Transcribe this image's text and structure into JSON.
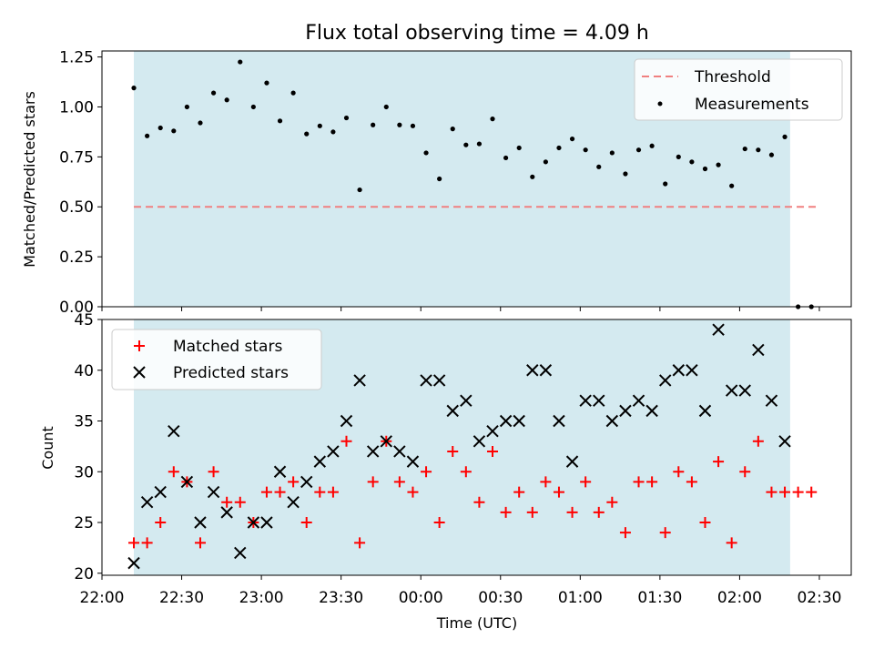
{
  "title": "Flux total observing time = 4.09 h",
  "colors": {
    "observing_span": "#d4eaf0",
    "threshold": "#f08080",
    "measurements": "#000000",
    "matched": "#ff0000",
    "predicted": "#000000"
  },
  "chart_data": [
    {
      "type": "scatter",
      "ylabel": "Matched/Predicted stars",
      "ylim": [
        0,
        1.28
      ],
      "xlim_minutes_after_22_00": [
        0,
        282
      ],
      "yticks": [
        "0.00",
        "0.25",
        "0.50",
        "0.75",
        "1.00",
        "1.25"
      ],
      "yticks_values": [
        0,
        0.25,
        0.5,
        0.75,
        1.0,
        1.25
      ],
      "observing_span_minutes": [
        12,
        259
      ],
      "legend": {
        "position": "top-right",
        "entries": [
          "Threshold",
          "Measurements"
        ]
      },
      "threshold": {
        "name": "Threshold",
        "value": 0.5,
        "x_range_minutes": [
          12,
          269
        ]
      },
      "series": [
        {
          "name": "Measurements",
          "x_minutes": [
            12,
            17,
            22,
            27,
            32,
            37,
            42,
            47,
            52,
            57,
            62,
            67,
            72,
            77,
            82,
            87,
            92,
            97,
            102,
            107,
            112,
            117,
            122,
            127,
            132,
            137,
            142,
            147,
            152,
            157,
            162,
            167,
            172,
            177,
            182,
            187,
            192,
            197,
            202,
            207,
            212,
            217,
            222,
            227,
            232,
            237,
            242,
            247,
            252,
            257,
            262,
            267
          ],
          "values": [
            1.095,
            0.855,
            0.895,
            0.88,
            1.0,
            0.92,
            1.07,
            1.035,
            1.225,
            1.0,
            1.12,
            0.93,
            1.07,
            0.865,
            0.905,
            0.875,
            0.945,
            0.585,
            0.91,
            1.0,
            0.91,
            0.905,
            0.77,
            0.64,
            0.89,
            0.81,
            0.815,
            0.94,
            0.745,
            0.795,
            0.65,
            0.725,
            0.795,
            0.84,
            0.785,
            0.7,
            0.77,
            0.665,
            0.785,
            0.805,
            0.615,
            0.75,
            0.725,
            0.69,
            0.71,
            0.605,
            0.79,
            0.785,
            0.76,
            0.85,
            0.0,
            0.0
          ]
        }
      ]
    },
    {
      "type": "scatter",
      "xlabel": "Time (UTC)",
      "ylabel": "Count",
      "ylim": [
        19.8,
        45
      ],
      "xlim_minutes_after_22_00": [
        0,
        282
      ],
      "xticks": [
        "22:00",
        "22:30",
        "23:00",
        "23:30",
        "00:00",
        "00:30",
        "01:00",
        "01:30",
        "02:00",
        "02:30"
      ],
      "xticks_minutes": [
        0,
        30,
        60,
        90,
        120,
        150,
        180,
        210,
        240,
        270
      ],
      "yticks": [
        "20",
        "25",
        "30",
        "35",
        "40",
        "45"
      ],
      "yticks_values": [
        20,
        25,
        30,
        35,
        40,
        45
      ],
      "observing_span_minutes": [
        12,
        259
      ],
      "legend": {
        "position": "top-left",
        "entries": [
          "Matched stars",
          "Predicted stars"
        ]
      },
      "series": [
        {
          "name": "Matched stars",
          "marker": "plus",
          "x_minutes": [
            12,
            17,
            22,
            27,
            32,
            37,
            42,
            47,
            52,
            57,
            62,
            67,
            72,
            77,
            82,
            87,
            92,
            97,
            102,
            107,
            112,
            117,
            122,
            127,
            132,
            137,
            142,
            147,
            152,
            157,
            162,
            167,
            172,
            177,
            182,
            187,
            192,
            197,
            202,
            207,
            212,
            217,
            222,
            227,
            232,
            237,
            242,
            247,
            252,
            257,
            262,
            267
          ],
          "values": [
            23,
            23,
            25,
            30,
            29,
            23,
            30,
            27,
            27,
            25,
            28,
            28,
            29,
            25,
            28,
            28,
            33,
            23,
            29,
            33,
            29,
            28,
            30,
            25,
            32,
            30,
            27,
            32,
            26,
            28,
            26,
            29,
            28,
            26,
            29,
            26,
            27,
            24,
            29,
            29,
            24,
            30,
            29,
            25,
            31,
            23,
            30,
            33,
            28,
            28,
            28,
            28
          ]
        },
        {
          "name": "Predicted stars",
          "marker": "x",
          "x_minutes": [
            12,
            17,
            22,
            27,
            32,
            37,
            42,
            47,
            52,
            57,
            62,
            67,
            72,
            77,
            82,
            87,
            92,
            97,
            102,
            107,
            112,
            117,
            122,
            127,
            132,
            137,
            142,
            147,
            152,
            157,
            162,
            167,
            172,
            177,
            182,
            187,
            192,
            197,
            202,
            207,
            212,
            217,
            222,
            227,
            232,
            237,
            242,
            247,
            252,
            257
          ],
          "values": [
            21,
            27,
            28,
            34,
            29,
            25,
            28,
            26,
            22,
            25,
            25,
            30,
            27,
            29,
            31,
            32,
            35,
            39,
            32,
            33,
            32,
            31,
            39,
            39,
            36,
            37,
            33,
            34,
            35,
            35,
            40,
            40,
            35,
            31,
            37,
            37,
            35,
            36,
            37,
            36,
            39,
            40,
            40,
            36,
            44,
            38,
            38,
            42,
            37,
            33
          ]
        }
      ]
    }
  ]
}
